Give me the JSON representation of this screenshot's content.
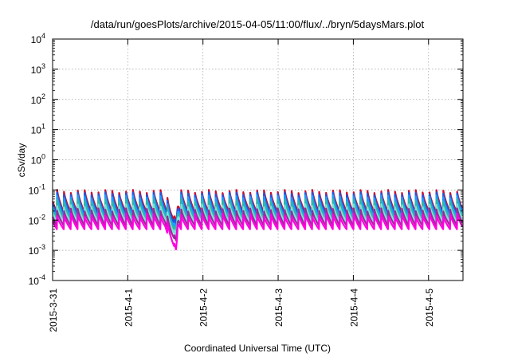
{
  "chart_data": {
    "type": "line",
    "title": "/data/run/goesPlots/archive/2015-04-05/11:00/flux/../bryn/5daysMars.plot",
    "xlabel": "Coordinated Universal Time (UTC)",
    "ylabel": "cSv/day",
    "x_tick_labels": [
      "2015-3-31",
      "2015-4-1",
      "2015-4-2",
      "2015-4-3",
      "2015-4-4",
      "2015-4-5"
    ],
    "xlim": [
      "2015-03-31T00:00",
      "2015-04-05T11:00"
    ],
    "y_scale": "log",
    "ylim": [
      0.0001,
      10000
    ],
    "y_ticks": [
      {
        "base": "10",
        "exp": "4"
      },
      {
        "base": "10",
        "exp": "3"
      },
      {
        "base": "10",
        "exp": "2"
      },
      {
        "base": "10",
        "exp": "1"
      },
      {
        "base": "10",
        "exp": "0"
      },
      {
        "base": "10",
        "exp": "-1"
      },
      {
        "base": "10",
        "exp": "-2"
      },
      {
        "base": "10",
        "exp": "-3"
      },
      {
        "base": "10",
        "exp": "-4"
      }
    ],
    "grid": true,
    "pattern": {
      "cycles_per_day": 10.9,
      "peak_values": [
        0.09,
        0.075,
        0.06,
        0.045,
        0.03,
        0.022,
        0.015
      ],
      "trough_values": [
        0.018,
        0.015,
        0.012,
        0.01,
        0.0085,
        0.0065,
        0.005
      ],
      "dip": {
        "start": "2015-04-01T12:00",
        "min": "2015-04-01T15:30",
        "end": "2015-04-01T16:00",
        "min_values": [
          0.009,
          0.007,
          0.005,
          0.004,
          0.003,
          0.002,
          0.001
        ]
      }
    },
    "series": [
      {
        "color": "#c8102e"
      },
      {
        "color": "#2255dd"
      },
      {
        "color": "#1a9cff"
      },
      {
        "color": "#2db8a8"
      },
      {
        "color": "#7fe0d8"
      },
      {
        "color": "#9a2a9a"
      },
      {
        "color": "#ff00e0"
      }
    ]
  }
}
